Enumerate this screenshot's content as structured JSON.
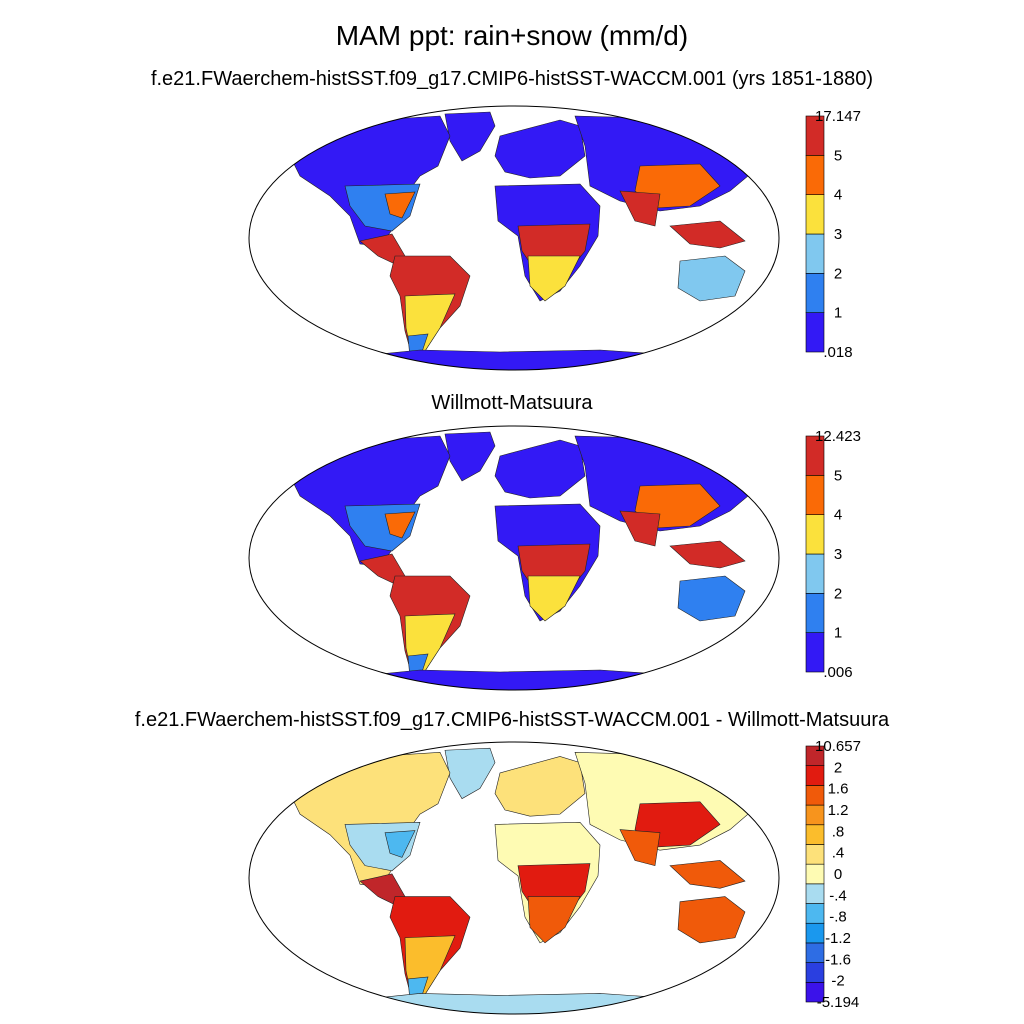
{
  "title": "MAM ppt: rain+snow (mm/d)",
  "panels": [
    {
      "title": "f.e21.FWaerchem-histSST.f09_g17.CMIP6-histSST-WACCM.001 (yrs 1851-1880)",
      "colorbar": {
        "labels": [
          "17.147",
          "5",
          "4",
          "3",
          "2",
          "1",
          ".018"
        ],
        "colors": [
          "#3319f5",
          "#2f80f0",
          "#80c8ef",
          "#fbe13c",
          "#fa6a06",
          "#d22b27"
        ]
      }
    },
    {
      "title": "Willmott-Matsuura",
      "colorbar": {
        "labels": [
          "12.423",
          "5",
          "4",
          "3",
          "2",
          "1",
          ".006"
        ],
        "colors": [
          "#3319f5",
          "#2f80f0",
          "#80c8ef",
          "#fbe13c",
          "#fa6a06",
          "#d22b27"
        ]
      }
    },
    {
      "title": "f.e21.FWaerchem-histSST.f09_g17.CMIP6-histSST-WACCM.001 - Willmott-Matsuura",
      "colorbar": {
        "labels": [
          "10.657",
          "2",
          "1.6",
          "1.2",
          ".8",
          ".4",
          "0",
          "-.4",
          "-.8",
          "-1.2",
          "-1.6",
          "-2",
          "-5.194"
        ],
        "colors": [
          "#3b12ea",
          "#2a3fe0",
          "#2e6de4",
          "#1a98ee",
          "#4db8f0",
          "#a9dcf0",
          "#fefbb3",
          "#fde17a",
          "#fbbd2c",
          "#f7941d",
          "#f05a0a",
          "#e11b10",
          "#c0262a"
        ]
      }
    }
  ]
}
